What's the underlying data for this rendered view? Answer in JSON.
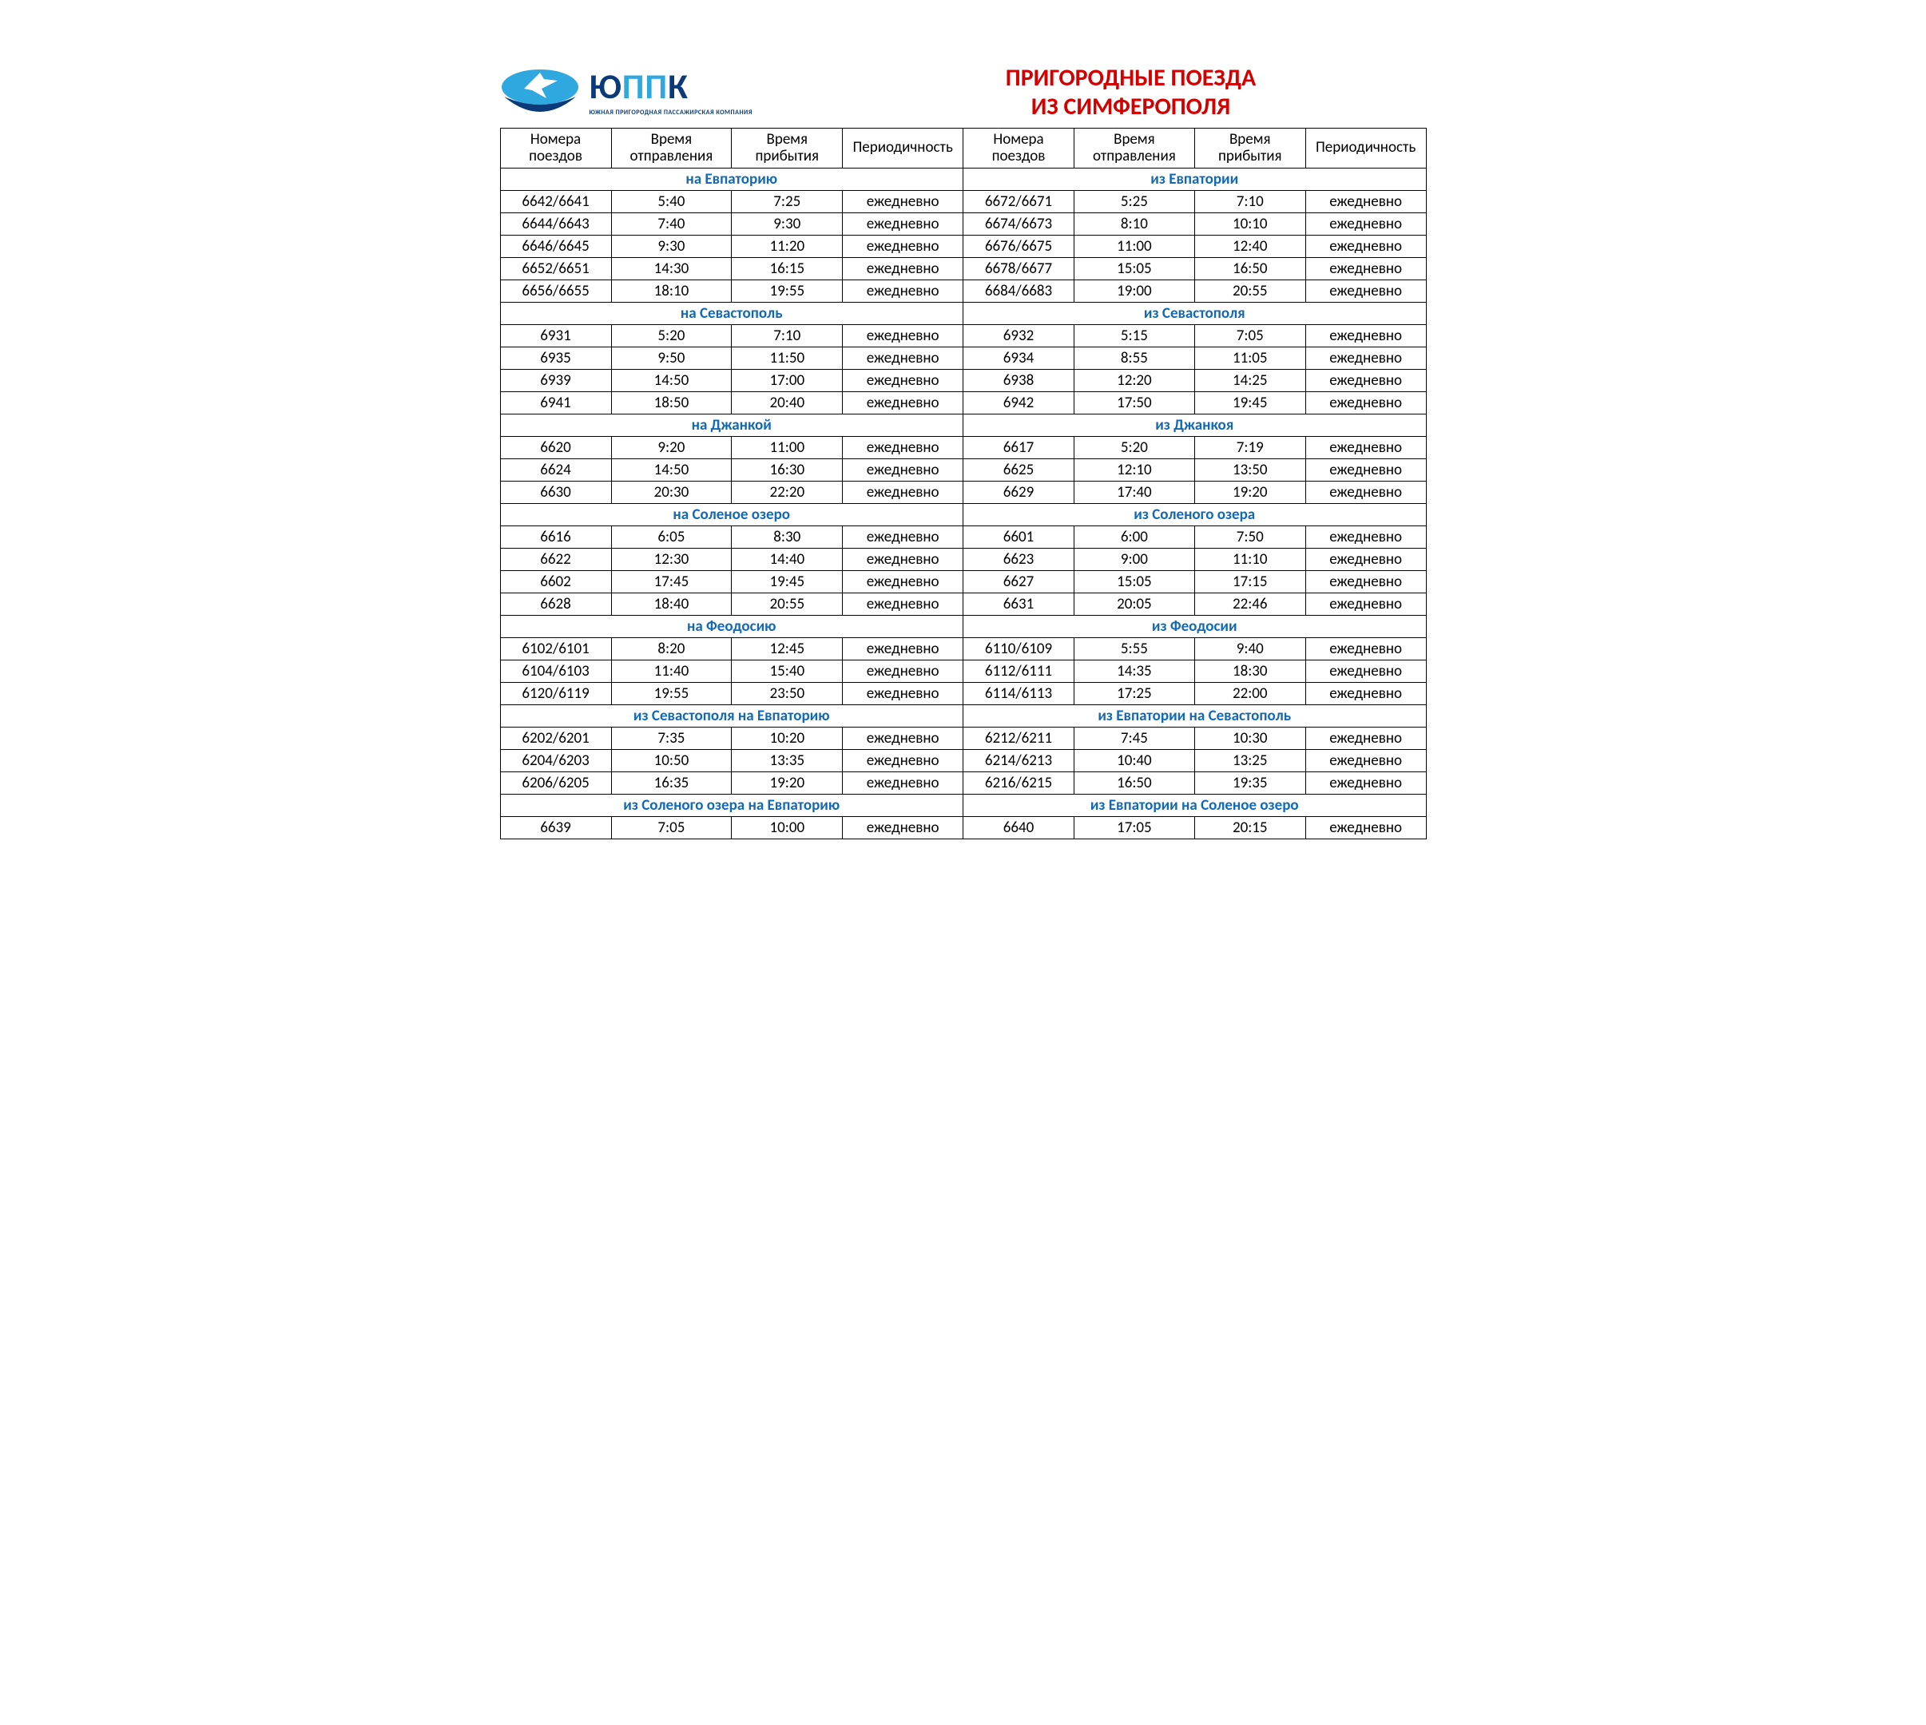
{
  "logo": {
    "company_prefix": "Ю",
    "company_accent": "ПП",
    "company_suffix": "К",
    "tagline": "ЮЖНАЯ ПРИГОРОДНАЯ ПАССАЖИРСКАЯ КОМПАНИЯ",
    "mark_color_top": "#2fa8df",
    "mark_color_bottom": "#0a3a7a"
  },
  "title": {
    "line1": "ПРИГОРОДНЫЕ ПОЕЗДА",
    "line2": "ИЗ СИМФЕРОПОЛЯ"
  },
  "columns": {
    "num": "Номера поездов",
    "dep": "Время отправления",
    "arr": "Время прибытия",
    "per": "Периодичность"
  },
  "daily": "ежедневно",
  "sections": [
    {
      "left_title": "на Евпаторию",
      "right_title": "из Евпатории",
      "left": [
        [
          "6642/6641",
          "5:40",
          "7:25",
          "ежедневно"
        ],
        [
          "6644/6643",
          "7:40",
          "9:30",
          "ежедневно"
        ],
        [
          "6646/6645",
          "9:30",
          "11:20",
          "ежедневно"
        ],
        [
          "6652/6651",
          "14:30",
          "16:15",
          "ежедневно"
        ],
        [
          "6656/6655",
          "18:10",
          "19:55",
          "ежедневно"
        ]
      ],
      "right": [
        [
          "6672/6671",
          "5:25",
          "7:10",
          "ежедневно"
        ],
        [
          "6674/6673",
          "8:10",
          "10:10",
          "ежедневно"
        ],
        [
          "6676/6675",
          "11:00",
          "12:40",
          "ежедневно"
        ],
        [
          "6678/6677",
          "15:05",
          "16:50",
          "ежедневно"
        ],
        [
          "6684/6683",
          "19:00",
          "20:55",
          "ежедневно"
        ]
      ]
    },
    {
      "left_title": "на Севастополь",
      "right_title": "из Севастополя",
      "left": [
        [
          "6931",
          "5:20",
          "7:10",
          "ежедневно"
        ],
        [
          "6935",
          "9:50",
          "11:50",
          "ежедневно"
        ],
        [
          "6939",
          "14:50",
          "17:00",
          "ежедневно"
        ],
        [
          "6941",
          "18:50",
          "20:40",
          "ежедневно"
        ]
      ],
      "right": [
        [
          "6932",
          "5:15",
          "7:05",
          "ежедневно"
        ],
        [
          "6934",
          "8:55",
          "11:05",
          "ежедневно"
        ],
        [
          "6938",
          "12:20",
          "14:25",
          "ежедневно"
        ],
        [
          "6942",
          "17:50",
          "19:45",
          "ежедневно"
        ]
      ]
    },
    {
      "left_title": "на Джанкой",
      "right_title": "из Джанкоя",
      "left": [
        [
          "6620",
          "9:20",
          "11:00",
          "ежедневно"
        ],
        [
          "6624",
          "14:50",
          "16:30",
          "ежедневно"
        ],
        [
          "6630",
          "20:30",
          "22:20",
          "ежедневно"
        ]
      ],
      "right": [
        [
          "6617",
          "5:20",
          "7:19",
          "ежедневно"
        ],
        [
          "6625",
          "12:10",
          "13:50",
          "ежедневно"
        ],
        [
          "6629",
          "17:40",
          "19:20",
          "ежедневно"
        ]
      ]
    },
    {
      "left_title": "на Соленое озеро",
      "right_title": "из Соленого озера",
      "left": [
        [
          "6616",
          "6:05",
          "8:30",
          "ежедневно"
        ],
        [
          "6622",
          "12:30",
          "14:40",
          "ежедневно"
        ],
        [
          "6602",
          "17:45",
          "19:45",
          "ежедневно"
        ],
        [
          "6628",
          "18:40",
          "20:55",
          "ежедневно"
        ]
      ],
      "right": [
        [
          "6601",
          "6:00",
          "7:50",
          "ежедневно"
        ],
        [
          "6623",
          "9:00",
          "11:10",
          "ежедневно"
        ],
        [
          "6627",
          "15:05",
          "17:15",
          "ежедневно"
        ],
        [
          "6631",
          "20:05",
          "22:46",
          "ежедневно"
        ]
      ]
    },
    {
      "left_title": "на Феодосию",
      "right_title": "из Феодосии",
      "left": [
        [
          "6102/6101",
          "8:20",
          "12:45",
          "ежедневно"
        ],
        [
          "6104/6103",
          "11:40",
          "15:40",
          "ежедневно"
        ],
        [
          "6120/6119",
          "19:55",
          "23:50",
          "ежедневно"
        ]
      ],
      "right": [
        [
          "6110/6109",
          "5:55",
          "9:40",
          "ежедневно"
        ],
        [
          "6112/6111",
          "14:35",
          "18:30",
          "ежедневно"
        ],
        [
          "6114/6113",
          "17:25",
          "22:00",
          "ежедневно"
        ]
      ]
    },
    {
      "left_title": "из Севастополя на Евпаторию",
      "right_title": "из Евпатории на Севастополь",
      "left": [
        [
          "6202/6201",
          "7:35",
          "10:20",
          "ежедневно"
        ],
        [
          "6204/6203",
          "10:50",
          "13:35",
          "ежедневно"
        ],
        [
          "6206/6205",
          "16:35",
          "19:20",
          "ежедневно"
        ]
      ],
      "right": [
        [
          "6212/6211",
          "7:45",
          "10:30",
          "ежедневно"
        ],
        [
          "6214/6213",
          "10:40",
          "13:25",
          "ежедневно"
        ],
        [
          "6216/6215",
          "16:50",
          "19:35",
          "ежедневно"
        ]
      ]
    },
    {
      "left_title": "из Соленого озера на Евпаторию",
      "right_title": "из Евпатории на Соленое озеро",
      "left": [
        [
          "6639",
          "7:05",
          "10:00",
          "ежедневно"
        ]
      ],
      "right": [
        [
          "6640",
          "17:05",
          "20:15",
          "ежедневно"
        ]
      ]
    }
  ],
  "styling": {
    "title_color": "#d40000",
    "section_header_color": "#1269b6",
    "border_color": "#000000",
    "background": "#ffffff",
    "base_fontsize_pt": 14,
    "title_fontsize_pt": 22,
    "section_fontsize_pt": 16
  }
}
